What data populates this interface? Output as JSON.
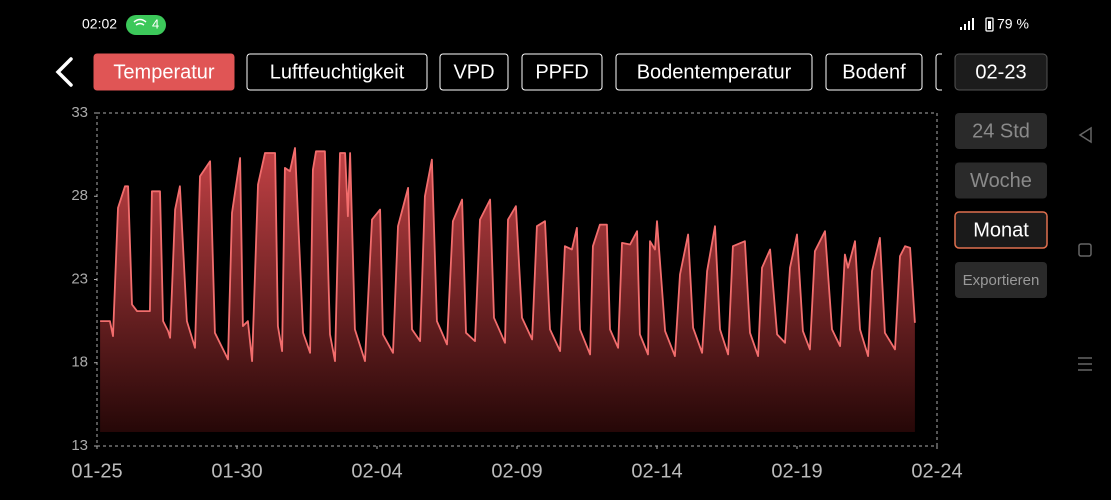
{
  "status_bar": {
    "time": "02:02",
    "notifications": 4,
    "battery": "79 %"
  },
  "tabs": [
    "Temperatur",
    "Luftfeuchtigkeit",
    "VPD",
    "PPFD",
    "Bodentemperatur",
    "Bodenf"
  ],
  "date_button": "02-23",
  "ranges": [
    "24 Std",
    "Woche",
    "Monat"
  ],
  "export_button": "Exportieren",
  "chart_data": {
    "type": "line",
    "color": "#f26d6d",
    "x": [
      0.11,
      0.46,
      0.57,
      0.75,
      1.0,
      1.11,
      1.25,
      1.43,
      1.89,
      1.96,
      2.25,
      2.36,
      2.54,
      2.61,
      2.79,
      2.96,
      3.21,
      3.5,
      3.68,
      4.04,
      4.21,
      4.68,
      4.82,
      5.11,
      5.21,
      5.39,
      5.54,
      5.75,
      6.0,
      6.36,
      6.46,
      6.61,
      6.71,
      6.89,
      7.07,
      7.36,
      7.61,
      7.71,
      7.82,
      8.14,
      8.32,
      8.5,
      8.68,
      8.86,
      8.96,
      9.04,
      9.21,
      9.57,
      9.82,
      10.11,
      10.21,
      10.57,
      10.75,
      11.11,
      11.25,
      11.54,
      11.71,
      11.96,
      12.14,
      12.5,
      12.71,
      13.04,
      13.18,
      13.5,
      13.68,
      14.04,
      14.18,
      14.57,
      14.68,
      14.96,
      15.18,
      15.54,
      15.71,
      16.0,
      16.18,
      16.54,
      16.71,
      16.96,
      17.14,
      17.25,
      17.61,
      17.71,
      17.96,
      18.21,
      18.32,
      18.61,
      18.75,
      19.04,
      19.29,
      19.39,
      19.68,
      19.75,
      19.93,
      20.0,
      20.29,
      20.64,
      20.82,
      21.11,
      21.29,
      21.61,
      21.79,
      22.07,
      22.25,
      22.54,
      22.71,
      23.14,
      23.32,
      23.61,
      23.75,
      24.04,
      24.29,
      24.57,
      24.75,
      25.0,
      25.21,
      25.46,
      25.64,
      26.0,
      26.25,
      26.54,
      26.71,
      26.82,
      27.07,
      27.25,
      27.54,
      27.68,
      27.96,
      28.14,
      28.5,
      28.68,
      28.86,
      29.04,
      29.21
    ],
    "values": [
      20.5,
      20.5,
      19.6,
      27.3,
      28.6,
      28.6,
      21.5,
      21.1,
      21.1,
      28.3,
      28.3,
      20.5,
      19.9,
      19.5,
      27.2,
      28.6,
      20.5,
      18.9,
      29.2,
      30.1,
      19.8,
      18.2,
      27,
      30.3,
      20.2,
      20.5,
      18.1,
      28.7,
      30.6,
      30.6,
      20.2,
      18.7,
      29.7,
      29.5,
      30.9,
      19.8,
      18.6,
      29.6,
      30.7,
      30.7,
      19.7,
      18.1,
      30.6,
      30.6,
      26.8,
      30.6,
      20,
      18.1,
      26.6,
      27.2,
      19.7,
      18.6,
      26.2,
      28.5,
      20,
      19.3,
      28,
      30.2,
      20.5,
      19.1,
      26.5,
      27.8,
      19.8,
      19.3,
      26.6,
      27.8,
      20.7,
      19.2,
      26.6,
      27.4,
      20.7,
      19.4,
      26.2,
      26.5,
      20,
      18.7,
      25,
      24.8,
      26.1,
      20,
      18.5,
      25,
      26.3,
      26.3,
      20,
      18.9,
      25.2,
      25.1,
      25.9,
      19.7,
      18.5,
      25.3,
      24.8,
      26.5,
      19.9,
      18.4,
      23.3,
      25.7,
      20.1,
      18.6,
      23.5,
      26.2,
      20,
      18.5,
      25,
      25.3,
      19.8,
      18.4,
      23.7,
      24.8,
      19.7,
      19.2,
      23.7,
      25.7,
      19.9,
      18.8,
      24.7,
      25.9,
      20,
      19,
      24.5,
      23.7,
      25.3,
      20,
      18.4,
      23.5,
      25.5,
      19.8,
      18.8,
      24.4,
      25,
      24.9,
      20.4
    ],
    "xlim": [
      0,
      30
    ],
    "xticks": [
      {
        "value": 0,
        "label": "01-25"
      },
      {
        "value": 5,
        "label": "01-30"
      },
      {
        "value": 10,
        "label": "02-04"
      },
      {
        "value": 15,
        "label": "02-09"
      },
      {
        "value": 20,
        "label": "02-14"
      },
      {
        "value": 25,
        "label": "02-19"
      },
      {
        "value": 30,
        "label": "02-24"
      }
    ],
    "ylim": [
      13,
      33
    ],
    "yticks": [
      13,
      18,
      23,
      28,
      33
    ]
  }
}
